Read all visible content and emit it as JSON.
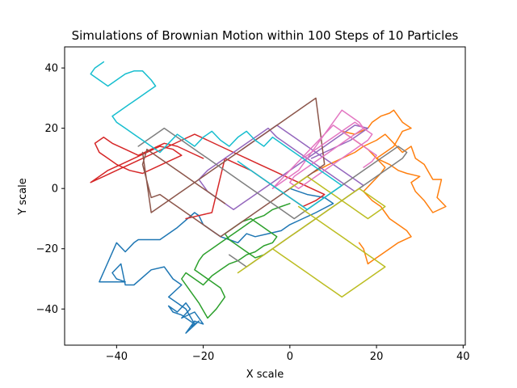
{
  "chart_data": {
    "type": "line",
    "title": "Simulations of Brownian Motion within 100 Steps of 10 Particles",
    "xlabel": "X scale",
    "ylabel": "Y scale",
    "xlim": [
      -52,
      40.5
    ],
    "ylim": [
      -52,
      47
    ],
    "xticks": [
      -40,
      -20,
      0,
      20,
      40
    ],
    "yticks": [
      -40,
      -20,
      0,
      20,
      40
    ],
    "xtick_labels": [
      "−40",
      "−20",
      "0",
      "20",
      "40"
    ],
    "ytick_labels": [
      "−40",
      "−20",
      "0",
      "20",
      "40"
    ],
    "grid": false,
    "series": [
      {
        "color": "#1f77b4",
        "x": [
          0,
          4,
          8,
          10,
          6,
          3,
          0,
          -2,
          -5,
          -8,
          -10,
          -12,
          -14,
          -16,
          -18,
          -20,
          -21,
          -22,
          -26,
          -30,
          -32,
          -35,
          -36,
          -38,
          -40,
          -44,
          -41,
          -39,
          -38,
          -40,
          -41,
          -39,
          -38,
          -36,
          -32,
          -29,
          -27,
          -25,
          -28,
          -26,
          -24,
          -22,
          -25,
          -27,
          -28,
          -26,
          -24,
          -23,
          -25,
          -22,
          -20,
          -22,
          -24,
          -21,
          -23
        ],
        "y": [
          0,
          -2,
          -3,
          -5,
          -8,
          -10,
          -12,
          -14,
          -15,
          -16,
          -15,
          -18,
          -17,
          -16,
          -14,
          -12,
          -9,
          -8,
          -13,
          -17,
          -17,
          -17,
          -18,
          -21,
          -18,
          -31,
          -31,
          -31,
          -31,
          -30,
          -28,
          -25,
          -32,
          -32,
          -27,
          -26,
          -30,
          -32,
          -36,
          -38,
          -40,
          -45,
          -42,
          -41,
          -39,
          -41,
          -38,
          -40,
          -43,
          -41,
          -45,
          -44,
          -48,
          -44,
          -46
        ]
      },
      {
        "color": "#ff7f0e",
        "x": [
          5,
          9,
          12,
          15,
          17,
          20,
          22,
          24,
          26,
          28,
          29,
          31,
          33,
          35,
          34,
          36,
          33,
          31,
          29,
          28,
          30,
          27,
          25,
          23,
          20,
          22,
          24,
          26,
          28,
          26,
          24,
          23,
          21,
          19,
          18,
          15,
          12,
          14,
          16,
          18,
          20,
          22,
          21,
          19,
          17,
          19,
          21,
          23,
          25,
          27,
          28,
          25,
          23,
          21,
          19,
          18,
          17,
          16
        ],
        "y": [
          5,
          8,
          10,
          12,
          14,
          16,
          18,
          15,
          12,
          14,
          10,
          8,
          3,
          3,
          -3,
          -6,
          -8,
          -4,
          -1,
          2,
          4,
          5,
          6,
          8,
          10,
          12,
          14,
          19,
          20,
          22,
          26,
          25,
          24,
          22,
          20,
          18,
          19,
          17,
          15,
          13,
          10,
          7,
          5,
          2,
          -1,
          -4,
          -6,
          -10,
          -12,
          -14,
          -16,
          -18,
          -20,
          -22,
          -24,
          -25,
          -20,
          -18
        ]
      },
      {
        "color": "#2ca02c",
        "x": [
          0,
          -2,
          -4,
          -6,
          -8,
          -10,
          -12,
          -14,
          -16,
          -18,
          -20,
          -21,
          -22,
          -20,
          -18,
          -16,
          -15,
          -17,
          -19,
          -21,
          -23,
          -25,
          -24,
          -22,
          -20,
          -18,
          -16,
          -14,
          -12,
          -10,
          -8,
          -6,
          -4,
          -3,
          -5,
          -7,
          -9,
          -11,
          -13,
          -15,
          -14,
          -12,
          -10,
          -8,
          -6,
          -4
        ],
        "y": [
          -5,
          -6,
          -7,
          -9,
          -10,
          -12,
          -14,
          -16,
          -18,
          -20,
          -22,
          -24,
          -27,
          -29,
          -31,
          -33,
          -36,
          -40,
          -43,
          -38,
          -34,
          -30,
          -28,
          -30,
          -32,
          -29,
          -27,
          -25,
          -24,
          -22,
          -21,
          -19,
          -18,
          -16,
          -14,
          -12,
          -10,
          -11,
          -13,
          -15,
          -17,
          -19,
          -21,
          -23,
          -22,
          -20
        ]
      },
      {
        "color": "#d62728",
        "x": [
          -20,
          -23,
          -26,
          -29,
          -32,
          -35,
          -38,
          -41,
          -43,
          -45,
          -44,
          -42,
          -40,
          -37,
          -34,
          -31,
          -28,
          -25,
          -27,
          -30,
          -33,
          -36,
          -39,
          -42,
          -44,
          -46,
          -43,
          -40,
          -37,
          -34,
          -31,
          -28,
          -25,
          -22,
          -19,
          -16,
          -13,
          -10,
          -7,
          -4,
          -1,
          2,
          5,
          8,
          6,
          3,
          0,
          -3,
          -6,
          -9,
          -12,
          -15,
          -18,
          -21,
          -24
        ],
        "y": [
          10,
          12,
          14,
          15,
          13,
          11,
          13,
          15,
          17,
          15,
          12,
          10,
          8,
          6,
          5,
          7,
          9,
          11,
          13,
          14,
          12,
          10,
          8,
          6,
          4,
          2,
          4,
          6,
          8,
          10,
          12,
          14,
          16,
          18,
          16,
          14,
          12,
          10,
          8,
          6,
          4,
          2,
          0,
          -2,
          -4,
          -6,
          -3,
          0,
          3,
          6,
          8,
          10,
          -8,
          -9,
          -10
        ]
      },
      {
        "color": "#9467bd",
        "x": [
          5,
          8,
          11,
          14,
          16,
          18,
          15,
          13,
          11,
          9,
          7,
          5,
          3,
          1,
          -1,
          -3,
          -5,
          -7,
          -9,
          -11,
          -13,
          -15,
          -17,
          -19,
          -21,
          -19,
          -17,
          -15,
          -13,
          -11,
          -9,
          -7,
          -5,
          -3,
          -1,
          1,
          3,
          5,
          7,
          9,
          11,
          13,
          15,
          17,
          15,
          13,
          11,
          9,
          7,
          5,
          3,
          1,
          -1,
          -3,
          -5,
          -7,
          -9,
          -11
        ],
        "y": [
          10,
          12,
          14,
          16,
          18,
          20,
          21,
          19,
          17,
          15,
          13,
          11,
          9,
          7,
          5,
          3,
          1,
          -1,
          -3,
          -5,
          -7,
          -5,
          -3,
          -1,
          3,
          6,
          8,
          10,
          12,
          14,
          16,
          18,
          20,
          17,
          15,
          13,
          11,
          9,
          7,
          5,
          3,
          1,
          -1,
          1,
          3,
          5,
          7,
          9,
          11,
          13,
          15,
          17,
          19,
          21,
          19,
          17,
          15,
          13
        ]
      },
      {
        "color": "#8c564b",
        "x": [
          -15,
          -17,
          -19,
          -21,
          -23,
          -25,
          -27,
          -29,
          -31,
          -33,
          -34,
          -32,
          -30,
          -28,
          -26,
          -24,
          -22,
          -20,
          -18,
          -16,
          -14,
          -12,
          -10,
          -8,
          -6,
          -4,
          -2,
          0,
          2,
          4,
          6,
          8,
          6,
          4,
          2,
          0,
          -2,
          -4,
          -6,
          -8,
          -10,
          -12,
          -14,
          -16,
          -18,
          -20,
          -22,
          -24,
          -26,
          -28,
          -30,
          -32,
          -34
        ],
        "y": [
          -5,
          -3,
          -1,
          1,
          3,
          5,
          7,
          9,
          11,
          13,
          8,
          -3,
          -2,
          -4,
          -6,
          -8,
          -10,
          -12,
          -14,
          -16,
          -14,
          -12,
          -10,
          -8,
          -6,
          -4,
          -2,
          0,
          2,
          4,
          6,
          8,
          30,
          28,
          26,
          24,
          22,
          20,
          18,
          16,
          14,
          12,
          10,
          8,
          6,
          4,
          2,
          0,
          -2,
          -4,
          -6,
          -8,
          12
        ]
      },
      {
        "color": "#e377c2",
        "x": [
          3,
          5,
          7,
          9,
          11,
          13,
          15,
          17,
          19,
          18,
          16,
          14,
          12,
          10,
          8,
          6,
          4,
          2,
          0,
          1,
          3,
          5,
          7,
          9,
          11,
          13,
          15,
          17,
          16,
          14,
          12,
          10,
          8,
          6,
          4,
          2,
          0,
          -2,
          -4,
          -2,
          0,
          2,
          4,
          6,
          8,
          10,
          12,
          14,
          16,
          18,
          20,
          19,
          17
        ],
        "y": [
          10,
          12,
          14,
          16,
          18,
          20,
          22,
          20,
          18,
          16,
          14,
          12,
          10,
          8,
          6,
          4,
          2,
          0,
          2,
          4,
          6,
          8,
          10,
          12,
          14,
          16,
          18,
          20,
          22,
          24,
          26,
          22,
          18,
          14,
          10,
          6,
          4,
          2,
          0,
          3,
          6,
          9,
          12,
          15,
          18,
          21,
          19,
          17,
          15,
          13,
          11,
          9,
          7
        ]
      },
      {
        "color": "#7f7f7f",
        "x": [
          -35,
          -33,
          -31,
          -29,
          -27,
          -25,
          -23,
          -21,
          -19,
          -17,
          -15,
          -13,
          -11,
          -9,
          -7,
          -5,
          -3,
          -1,
          1,
          3,
          5,
          7,
          9,
          11,
          13,
          15,
          17,
          19,
          21,
          23,
          25,
          27,
          26,
          24,
          22,
          20,
          18,
          16,
          14,
          12,
          10,
          8,
          6,
          4,
          2,
          0,
          -2,
          -4,
          -6,
          -8,
          -10,
          -12,
          -14
        ],
        "y": [
          14,
          16,
          18,
          20,
          18,
          16,
          14,
          12,
          10,
          8,
          6,
          4,
          2,
          0,
          -2,
          -4,
          -6,
          -8,
          -10,
          -8,
          -6,
          -4,
          -2,
          0,
          2,
          4,
          6,
          8,
          10,
          12,
          14,
          12,
          10,
          8,
          6,
          4,
          2,
          0,
          -2,
          -4,
          -6,
          -8,
          -10,
          -12,
          -14,
          -16,
          -18,
          -20,
          -22,
          -24,
          -26,
          -24,
          -22
        ]
      },
      {
        "color": "#bcbd22",
        "x": [
          0,
          2,
          4,
          6,
          8,
          10,
          12,
          14,
          16,
          18,
          20,
          22,
          20,
          18,
          16,
          14,
          12,
          10,
          8,
          6,
          4,
          2,
          0,
          -2,
          -4,
          -6,
          -8,
          -10,
          -12,
          -10,
          -8,
          -6,
          -4,
          -2,
          0,
          2,
          4,
          6,
          8,
          10,
          12,
          14,
          16,
          18,
          20,
          22,
          20,
          18,
          16,
          14,
          12,
          10,
          8,
          6,
          4,
          2
        ],
        "y": [
          0,
          2,
          4,
          2,
          0,
          -2,
          -4,
          -6,
          -8,
          -10,
          -8,
          -6,
          -4,
          -2,
          0,
          -2,
          -4,
          -6,
          -8,
          -10,
          -12,
          -14,
          -16,
          -18,
          -20,
          -22,
          -24,
          -26,
          -28,
          -26,
          -24,
          -22,
          -20,
          -22,
          -24,
          -26,
          -28,
          -30,
          -32,
          -34,
          -36,
          -34,
          -32,
          -30,
          -28,
          -26,
          -24,
          -22,
          -20,
          -18,
          -16,
          -14,
          -12,
          -10,
          -8,
          -6
        ]
      },
      {
        "color": "#17becf",
        "x": [
          -43,
          -45,
          -46,
          -44,
          -42,
          -40,
          -38,
          -36,
          -34,
          -32,
          -31,
          -33,
          -35,
          -37,
          -39,
          -41,
          -40,
          -38,
          -36,
          -34,
          -32,
          -30,
          -28,
          -26,
          -24,
          -22,
          -20,
          -18,
          -16,
          -14,
          -12,
          -10,
          -8,
          -6,
          -4,
          -2,
          0,
          2,
          4,
          6,
          8,
          10,
          12,
          10,
          8,
          6,
          4,
          2,
          0,
          -2,
          -4,
          -6,
          -8,
          -10,
          -12
        ],
        "y": [
          42,
          40,
          38,
          36,
          34,
          36,
          38,
          39,
          39,
          36,
          34,
          32,
          30,
          28,
          26,
          24,
          22,
          20,
          18,
          16,
          14,
          12,
          15,
          18,
          16,
          14,
          17,
          19,
          16,
          14,
          17,
          19,
          16,
          14,
          17,
          15,
          13,
          11,
          9,
          7,
          5,
          3,
          1,
          -1,
          -3,
          -5,
          -7,
          -5,
          -3,
          -1,
          1,
          3,
          5,
          7,
          9
        ]
      }
    ]
  }
}
